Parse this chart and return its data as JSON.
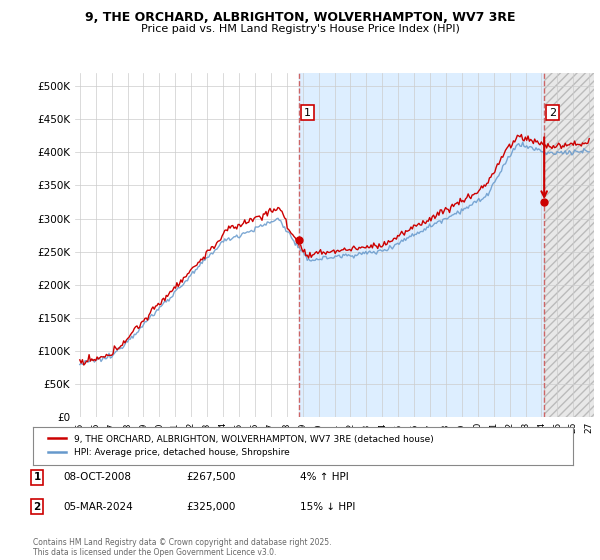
{
  "title_line1": "9, THE ORCHARD, ALBRIGHTON, WOLVERHAMPTON, WV7 3RE",
  "title_line2": "Price paid vs. HM Land Registry's House Price Index (HPI)",
  "legend_label_red": "9, THE ORCHARD, ALBRIGHTON, WOLVERHAMPTON, WV7 3RE (detached house)",
  "legend_label_blue": "HPI: Average price, detached house, Shropshire",
  "annotation1_date": "08-OCT-2008",
  "annotation1_price": "£267,500",
  "annotation1_hpi": "4% ↑ HPI",
  "annotation2_date": "05-MAR-2024",
  "annotation2_price": "£325,000",
  "annotation2_hpi": "15% ↓ HPI",
  "footer": "Contains HM Land Registry data © Crown copyright and database right 2025.\nThis data is licensed under the Open Government Licence v3.0.",
  "red_color": "#cc0000",
  "blue_color": "#6699cc",
  "bg_fill_color": "#ddeeff",
  "vline_color": "#cc6666",
  "background_color": "#ffffff",
  "grid_color": "#cccccc",
  "ylim": [
    0,
    520000
  ],
  "yticks": [
    0,
    50000,
    100000,
    150000,
    200000,
    250000,
    300000,
    350000,
    400000,
    450000,
    500000
  ],
  "sale1_year": 2008.77,
  "sale2_year": 2024.17,
  "sale1_price": 267500,
  "sale2_price": 325000
}
